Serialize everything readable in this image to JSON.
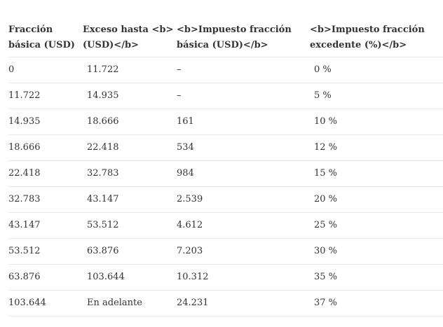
{
  "table": {
    "headers": [
      "Fracción básica (USD)",
      "Exceso hasta <b> (USD)</b>",
      "<b>Impuesto fracción básica (USD)</b>",
      "<b>Impuesto fracción excedente (%)</b>"
    ],
    "rows": [
      [
        "0",
        "11.722",
        "–",
        "0 %"
      ],
      [
        "11.722",
        "14.935",
        "–",
        "5 %"
      ],
      [
        "14.935",
        "18.666",
        "161",
        "10 %"
      ],
      [
        "18.666",
        "22.418",
        "534",
        "12 %"
      ],
      [
        "22.418",
        "32.783",
        "984",
        "15 %"
      ],
      [
        "32.783",
        "43.147",
        "2.539",
        "20 %"
      ],
      [
        "43.147",
        "53.512",
        "4.612",
        "25 %"
      ],
      [
        "53.512",
        "63.876",
        "7.203",
        "30 %"
      ],
      [
        "63.876",
        "103.644",
        "10.312",
        "35 %"
      ],
      [
        "103.644",
        "En adelante",
        "24.231",
        "37 %"
      ]
    ]
  }
}
